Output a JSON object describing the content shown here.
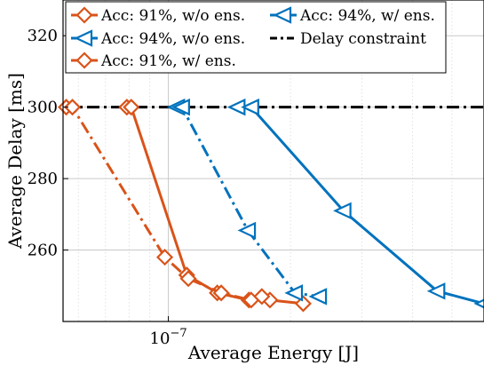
{
  "chart_data": {
    "type": "line",
    "xlabel": "Average Energy [J]",
    "ylabel": "Average Delay [ms]",
    "xscale": "log",
    "xlim": [
      5.5e-08,
      6e-07
    ],
    "ylim": [
      240,
      330
    ],
    "x_tick_labels": [
      "10−7"
    ],
    "y_ticks": [
      260,
      280,
      300,
      320
    ],
    "grid": "on",
    "legend_position": "top",
    "series": [
      {
        "name": "Acc: 91%, w/o ens.",
        "color": "#D95319",
        "linestyle": "solid",
        "marker": "diamond",
        "x": [
          7.9e-08,
          8.1e-08,
          1.11e-07,
          1.32e-07,
          1.58e-07,
          1.78e-07,
          2.15e-07
        ],
        "y": [
          300,
          300,
          253,
          248,
          246,
          246,
          245
        ]
      },
      {
        "name": "Acc: 94%, w/o ens.",
        "color": "#0072BD",
        "linestyle": "solid",
        "marker": "triangle-left",
        "x": [
          1.48e-07,
          1.6e-07,
          2.7e-07,
          4.6e-07,
          6e-07
        ],
        "y": [
          300,
          300,
          271,
          248.5,
          245
        ]
      },
      {
        "name": "Acc: 91%, w/ ens.",
        "color": "#D95319",
        "linestyle": "dashdot",
        "marker": "diamond",
        "x": [
          5.6e-08,
          5.8e-08,
          9.8e-08,
          1.12e-07,
          1.35e-07,
          1.6e-07,
          1.7e-07
        ],
        "y": [
          300,
          300,
          258,
          252,
          248,
          246,
          247
        ]
      },
      {
        "name": "Acc: 94%, w/ ens.",
        "color": "#0072BD",
        "linestyle": "dashdot",
        "marker": "triangle-left",
        "x": [
          1.05e-07,
          1.08e-07,
          1.57e-07,
          2.05e-07,
          2.35e-07
        ],
        "y": [
          300,
          300,
          265.5,
          248,
          247
        ]
      },
      {
        "name": "Delay constraint",
        "color": "#000000",
        "linestyle": "dashdot",
        "marker": "none",
        "x": [
          5.5e-08,
          6e-07
        ],
        "y": [
          300,
          300
        ]
      }
    ]
  }
}
